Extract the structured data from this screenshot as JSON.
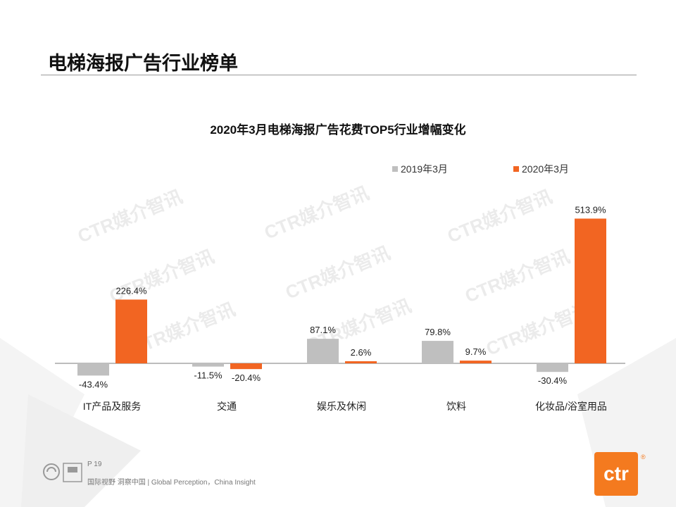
{
  "page": {
    "title": "电梯海报广告行业榜单",
    "page_number": "P 19",
    "slogan": "国际视野  洞察中国 | Global Perception，China Insight",
    "watermark": "CTR媒介智讯",
    "logo_text": "ctr",
    "logo_reg": "®"
  },
  "colors": {
    "series_2019": "#bfbfbf",
    "series_2020": "#f26522",
    "accent": "#f47a1f"
  },
  "chart_data": {
    "type": "bar",
    "title": "2020年3月电梯海报广告花费TOP5行业增幅变化",
    "categories": [
      "IT产品及服务",
      "交通",
      "娱乐及休闲",
      "饮料",
      "化妆品/浴室用品"
    ],
    "series": [
      {
        "name": "2019年3月",
        "values": [
          -43.4,
          -11.5,
          87.1,
          79.8,
          -30.4
        ],
        "labels": [
          "-43.4%",
          "-11.5%",
          "87.1%",
          "79.8%",
          "-30.4%"
        ]
      },
      {
        "name": "2020年3月",
        "values": [
          226.4,
          -20.4,
          2.6,
          9.7,
          513.9
        ],
        "labels": [
          "226.4%",
          "-20.4%",
          "2.6%",
          "9.7%",
          "513.9%"
        ]
      }
    ],
    "unit": "%",
    "legend_position": "top-right",
    "grid": false
  }
}
